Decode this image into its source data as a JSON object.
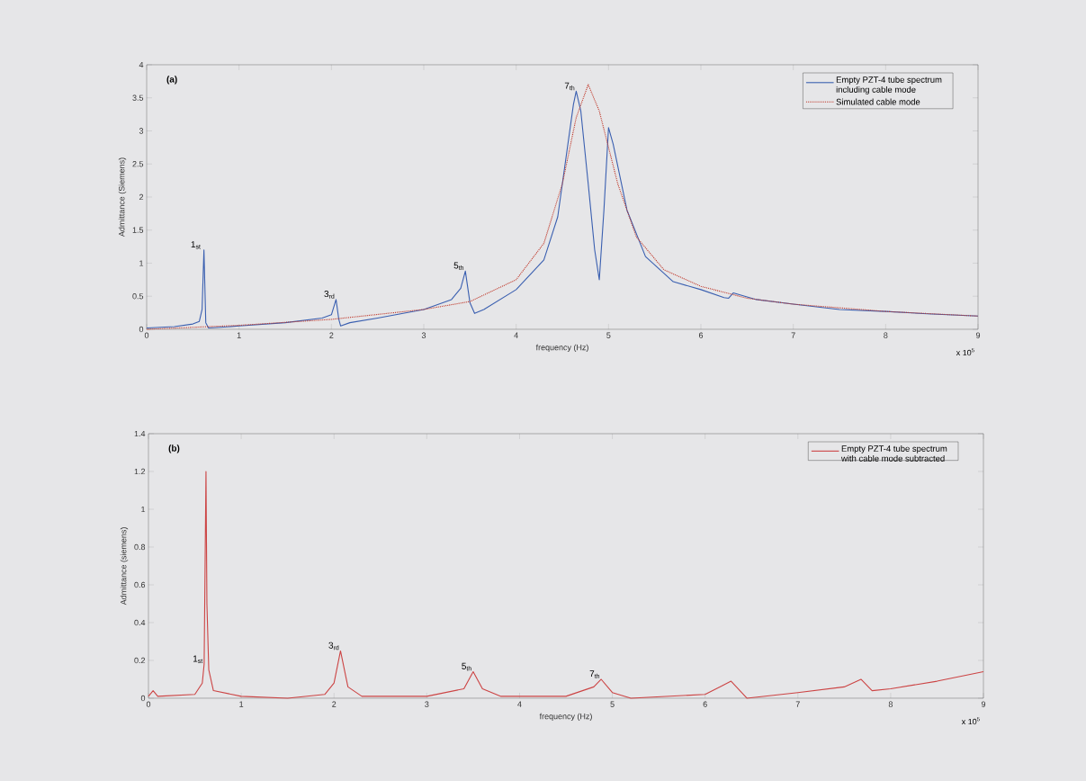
{
  "chart_data": [
    {
      "type": "line",
      "xlabel": "frequency (Hz)",
      "ylabel": "Admittance (Siemens)",
      "xlim": [
        0,
        9
      ],
      "xticks": [
        0,
        1,
        2,
        3,
        4,
        5,
        6,
        7,
        8,
        9
      ],
      "ylim": [
        0,
        4
      ],
      "yticks": [
        0,
        0.5,
        1,
        1.5,
        2,
        2.5,
        3,
        3.5,
        4
      ],
      "legend": "top right",
      "grid": false,
      "annotations": [
        "(a)",
        "x 10$^{5}$",
        {
          "text": "1$_{st}$",
          "x": 0.6,
          "y": 1.2
        },
        {
          "text": "3$_{rd}$",
          "x": 2.05,
          "y": 0.45
        },
        {
          "text": "5$_{th}$",
          "x": 3.45,
          "y": 0.88
        },
        {
          "text": "7$_{th}$",
          "x": 4.65,
          "y": 3.6
        }
      ],
      "series": [
        {
          "name": "Empty PZT-4 tube spectrum including cable mode",
          "color": "#3a5fb0",
          "line_style": "solid",
          "x": [
            0,
            0.3,
            0.5,
            0.57,
            0.6,
            0.62,
            0.64,
            0.67,
            0.8,
            1.0,
            1.5,
            1.9,
            2.0,
            2.05,
            2.08,
            2.1,
            2.2,
            2.5,
            3.0,
            3.3,
            3.4,
            3.45,
            3.5,
            3.55,
            3.65,
            4.0,
            4.3,
            4.45,
            4.55,
            4.62,
            4.65,
            4.7,
            4.78,
            4.85,
            4.9,
            4.95,
            5.0,
            5.05,
            5.2,
            5.4,
            5.7,
            6.0,
            6.25,
            6.3,
            6.35,
            6.6,
            7.0,
            7.5,
            8.0,
            8.5,
            9.0
          ],
          "values": [
            0.02,
            0.04,
            0.08,
            0.12,
            0.3,
            1.2,
            0.1,
            0.02,
            0.03,
            0.05,
            0.1,
            0.17,
            0.22,
            0.45,
            0.15,
            0.05,
            0.1,
            0.17,
            0.3,
            0.45,
            0.62,
            0.88,
            0.4,
            0.24,
            0.3,
            0.6,
            1.05,
            1.7,
            2.7,
            3.4,
            3.6,
            3.3,
            2.2,
            1.2,
            0.75,
            1.8,
            3.05,
            2.8,
            1.8,
            1.1,
            0.72,
            0.6,
            0.48,
            0.47,
            0.55,
            0.45,
            0.38,
            0.3,
            0.27,
            0.23,
            0.2
          ]
        },
        {
          "name": "Simulated cable mode",
          "color": "#c0392b",
          "line_style": "dotted",
          "x": [
            0,
            0.5,
            1,
            2,
            3,
            3.5,
            4,
            4.3,
            4.5,
            4.65,
            4.78,
            4.9,
            5.1,
            5.3,
            5.6,
            6.0,
            6.5,
            7.0,
            8.0,
            9.0
          ],
          "values": [
            0.0,
            0.03,
            0.06,
            0.15,
            0.3,
            0.42,
            0.75,
            1.3,
            2.2,
            3.2,
            3.7,
            3.3,
            2.2,
            1.4,
            0.9,
            0.65,
            0.47,
            0.38,
            0.27,
            0.2
          ]
        }
      ]
    },
    {
      "type": "line",
      "xlabel": "frequency (Hz)",
      "ylabel": "Admittance (siemens)",
      "xlim": [
        0,
        9
      ],
      "xticks": [
        0,
        1,
        2,
        3,
        4,
        5,
        6,
        7,
        8,
        9
      ],
      "ylim": [
        0,
        1.4
      ],
      "yticks": [
        0,
        0.2,
        0.4,
        0.6,
        0.8,
        1,
        1.2,
        1.4
      ],
      "legend": "top right",
      "grid": false,
      "annotations": [
        "(b)",
        "x 10$^{5}$",
        {
          "text": "1$_{st}$",
          "x": 0.6,
          "y": 0.18
        },
        {
          "text": "3$_{rd}$",
          "x": 2.07,
          "y": 0.25
        },
        {
          "text": "5$_{th}$",
          "x": 3.5,
          "y": 0.14
        },
        {
          "text": "7$_{th}$",
          "x": 4.88,
          "y": 0.1
        }
      ],
      "series": [
        {
          "name": "Empty PZT-4 tube spectrum with cable mode subtracted",
          "color": "#cc4444",
          "line_style": "solid",
          "x": [
            0,
            0.05,
            0.1,
            0.5,
            0.58,
            0.6,
            0.62,
            0.63,
            0.65,
            0.7,
            1.0,
            1.5,
            1.9,
            2.0,
            2.07,
            2.15,
            2.3,
            3.0,
            3.4,
            3.5,
            3.6,
            3.8,
            4.5,
            4.8,
            4.88,
            5.0,
            5.2,
            6.0,
            6.28,
            6.45,
            7.0,
            7.5,
            7.68,
            7.8,
            8.0,
            8.5,
            9.0
          ],
          "values": [
            0.01,
            0.04,
            0.01,
            0.02,
            0.08,
            0.18,
            1.2,
            0.5,
            0.15,
            0.04,
            0.01,
            0.0,
            0.02,
            0.08,
            0.25,
            0.06,
            0.01,
            0.01,
            0.05,
            0.14,
            0.05,
            0.01,
            0.01,
            0.06,
            0.1,
            0.03,
            0.0,
            0.02,
            0.09,
            0.0,
            0.03,
            0.06,
            0.1,
            0.04,
            0.05,
            0.09,
            0.14
          ]
        }
      ]
    }
  ]
}
